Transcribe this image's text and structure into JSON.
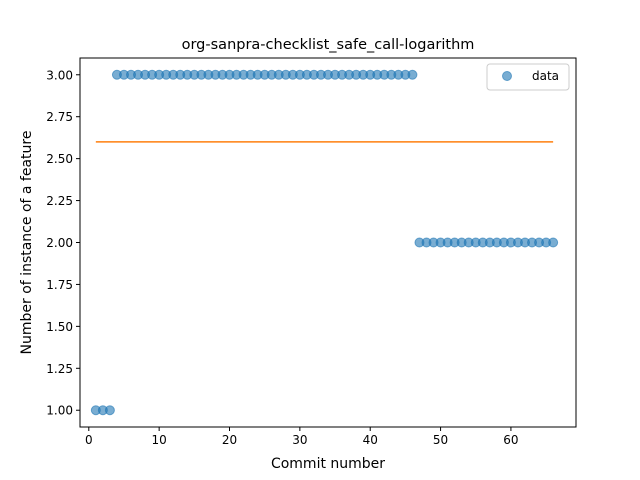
{
  "chart_data": {
    "type": "scatter",
    "title": "org-sanpra-checklist_safe_call-logarithm",
    "xlabel": "Commit number",
    "ylabel": "Number of instance of a feature",
    "xlim": [
      -1.25,
      69.25
    ],
    "ylim": [
      0.9,
      3.1
    ],
    "xticks": [
      0,
      10,
      20,
      30,
      40,
      50,
      60
    ],
    "yticks": [
      1.0,
      1.25,
      1.5,
      1.75,
      2.0,
      2.25,
      2.5,
      2.75,
      3.0
    ],
    "ytick_labels": [
      "1.00",
      "1.25",
      "1.50",
      "1.75",
      "2.00",
      "2.25",
      "2.50",
      "2.75",
      "3.00"
    ],
    "grid": false,
    "legend_position": "top-right",
    "series": [
      {
        "name": "data",
        "kind": "scatter",
        "color": "#1f77b4",
        "alpha": 0.6,
        "x": [
          1,
          2,
          3,
          4,
          5,
          6,
          7,
          8,
          9,
          10,
          11,
          12,
          13,
          14,
          15,
          16,
          17,
          18,
          19,
          20,
          21,
          22,
          23,
          24,
          25,
          26,
          27,
          28,
          29,
          30,
          31,
          32,
          33,
          34,
          35,
          36,
          37,
          38,
          39,
          40,
          41,
          42,
          43,
          44,
          45,
          46,
          47,
          48,
          49,
          50,
          51,
          52,
          53,
          54,
          55,
          56,
          57,
          58,
          59,
          60,
          61,
          62,
          63,
          64,
          65,
          66
        ],
        "y": [
          1,
          1,
          1,
          3,
          3,
          3,
          3,
          3,
          3,
          3,
          3,
          3,
          3,
          3,
          3,
          3,
          3,
          3,
          3,
          3,
          3,
          3,
          3,
          3,
          3,
          3,
          3,
          3,
          3,
          3,
          3,
          3,
          3,
          3,
          3,
          3,
          3,
          3,
          3,
          3,
          3,
          3,
          3,
          3,
          3,
          3,
          2,
          2,
          2,
          2,
          2,
          2,
          2,
          2,
          2,
          2,
          2,
          2,
          2,
          2,
          2,
          2,
          2,
          2,
          2,
          2
        ]
      },
      {
        "kind": "line",
        "color": "#ff7f0e",
        "x": [
          1,
          66
        ],
        "y": [
          2.6,
          2.6
        ]
      }
    ]
  }
}
